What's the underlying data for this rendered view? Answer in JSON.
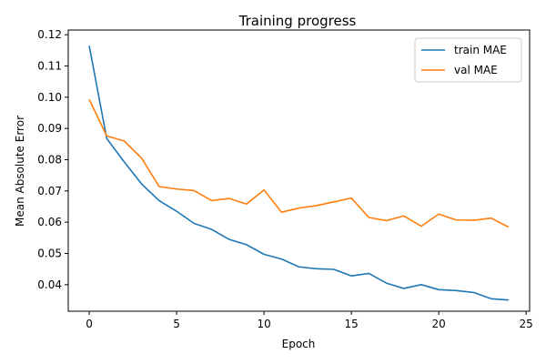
{
  "chart_data": {
    "type": "line",
    "title": "Training progress",
    "xlabel": "Epoch",
    "ylabel": "Mean Absolute Error",
    "xlim": [
      -1.2,
      25.2
    ],
    "ylim": [
      0.0315,
      0.1215
    ],
    "xticks": [
      0,
      5,
      10,
      15,
      20,
      25
    ],
    "yticks": [
      0.04,
      0.05,
      0.06,
      0.07,
      0.08,
      0.09,
      0.1,
      0.11,
      0.12
    ],
    "ytick_labels": [
      "0.04",
      "0.05",
      "0.06",
      "0.07",
      "0.08",
      "0.09",
      "0.10",
      "0.11",
      "0.12"
    ],
    "grid": false,
    "legend_position": "top-right",
    "x": [
      0,
      1,
      2,
      3,
      4,
      5,
      6,
      7,
      8,
      9,
      10,
      11,
      12,
      13,
      14,
      15,
      16,
      17,
      18,
      19,
      20,
      21,
      22,
      23,
      24
    ],
    "series": [
      {
        "name": "train MAE",
        "color": "#1f77b4",
        "values": [
          0.1165,
          0.0868,
          0.0793,
          0.0722,
          0.0669,
          0.0635,
          0.0596,
          0.0577,
          0.0545,
          0.0528,
          0.0497,
          0.0482,
          0.0457,
          0.0451,
          0.0449,
          0.0428,
          0.0436,
          0.0405,
          0.0388,
          0.04,
          0.0384,
          0.0381,
          0.0375,
          0.0355,
          0.0351
        ]
      },
      {
        "name": "val MAE",
        "color": "#ff7f0e",
        "values": [
          0.0993,
          0.0876,
          0.086,
          0.0805,
          0.0714,
          0.0706,
          0.0701,
          0.0669,
          0.0676,
          0.0658,
          0.0703,
          0.0632,
          0.0645,
          0.0653,
          0.0665,
          0.0677,
          0.0615,
          0.0605,
          0.062,
          0.0587,
          0.0626,
          0.0607,
          0.0606,
          0.0613,
          0.0584
        ]
      }
    ]
  }
}
